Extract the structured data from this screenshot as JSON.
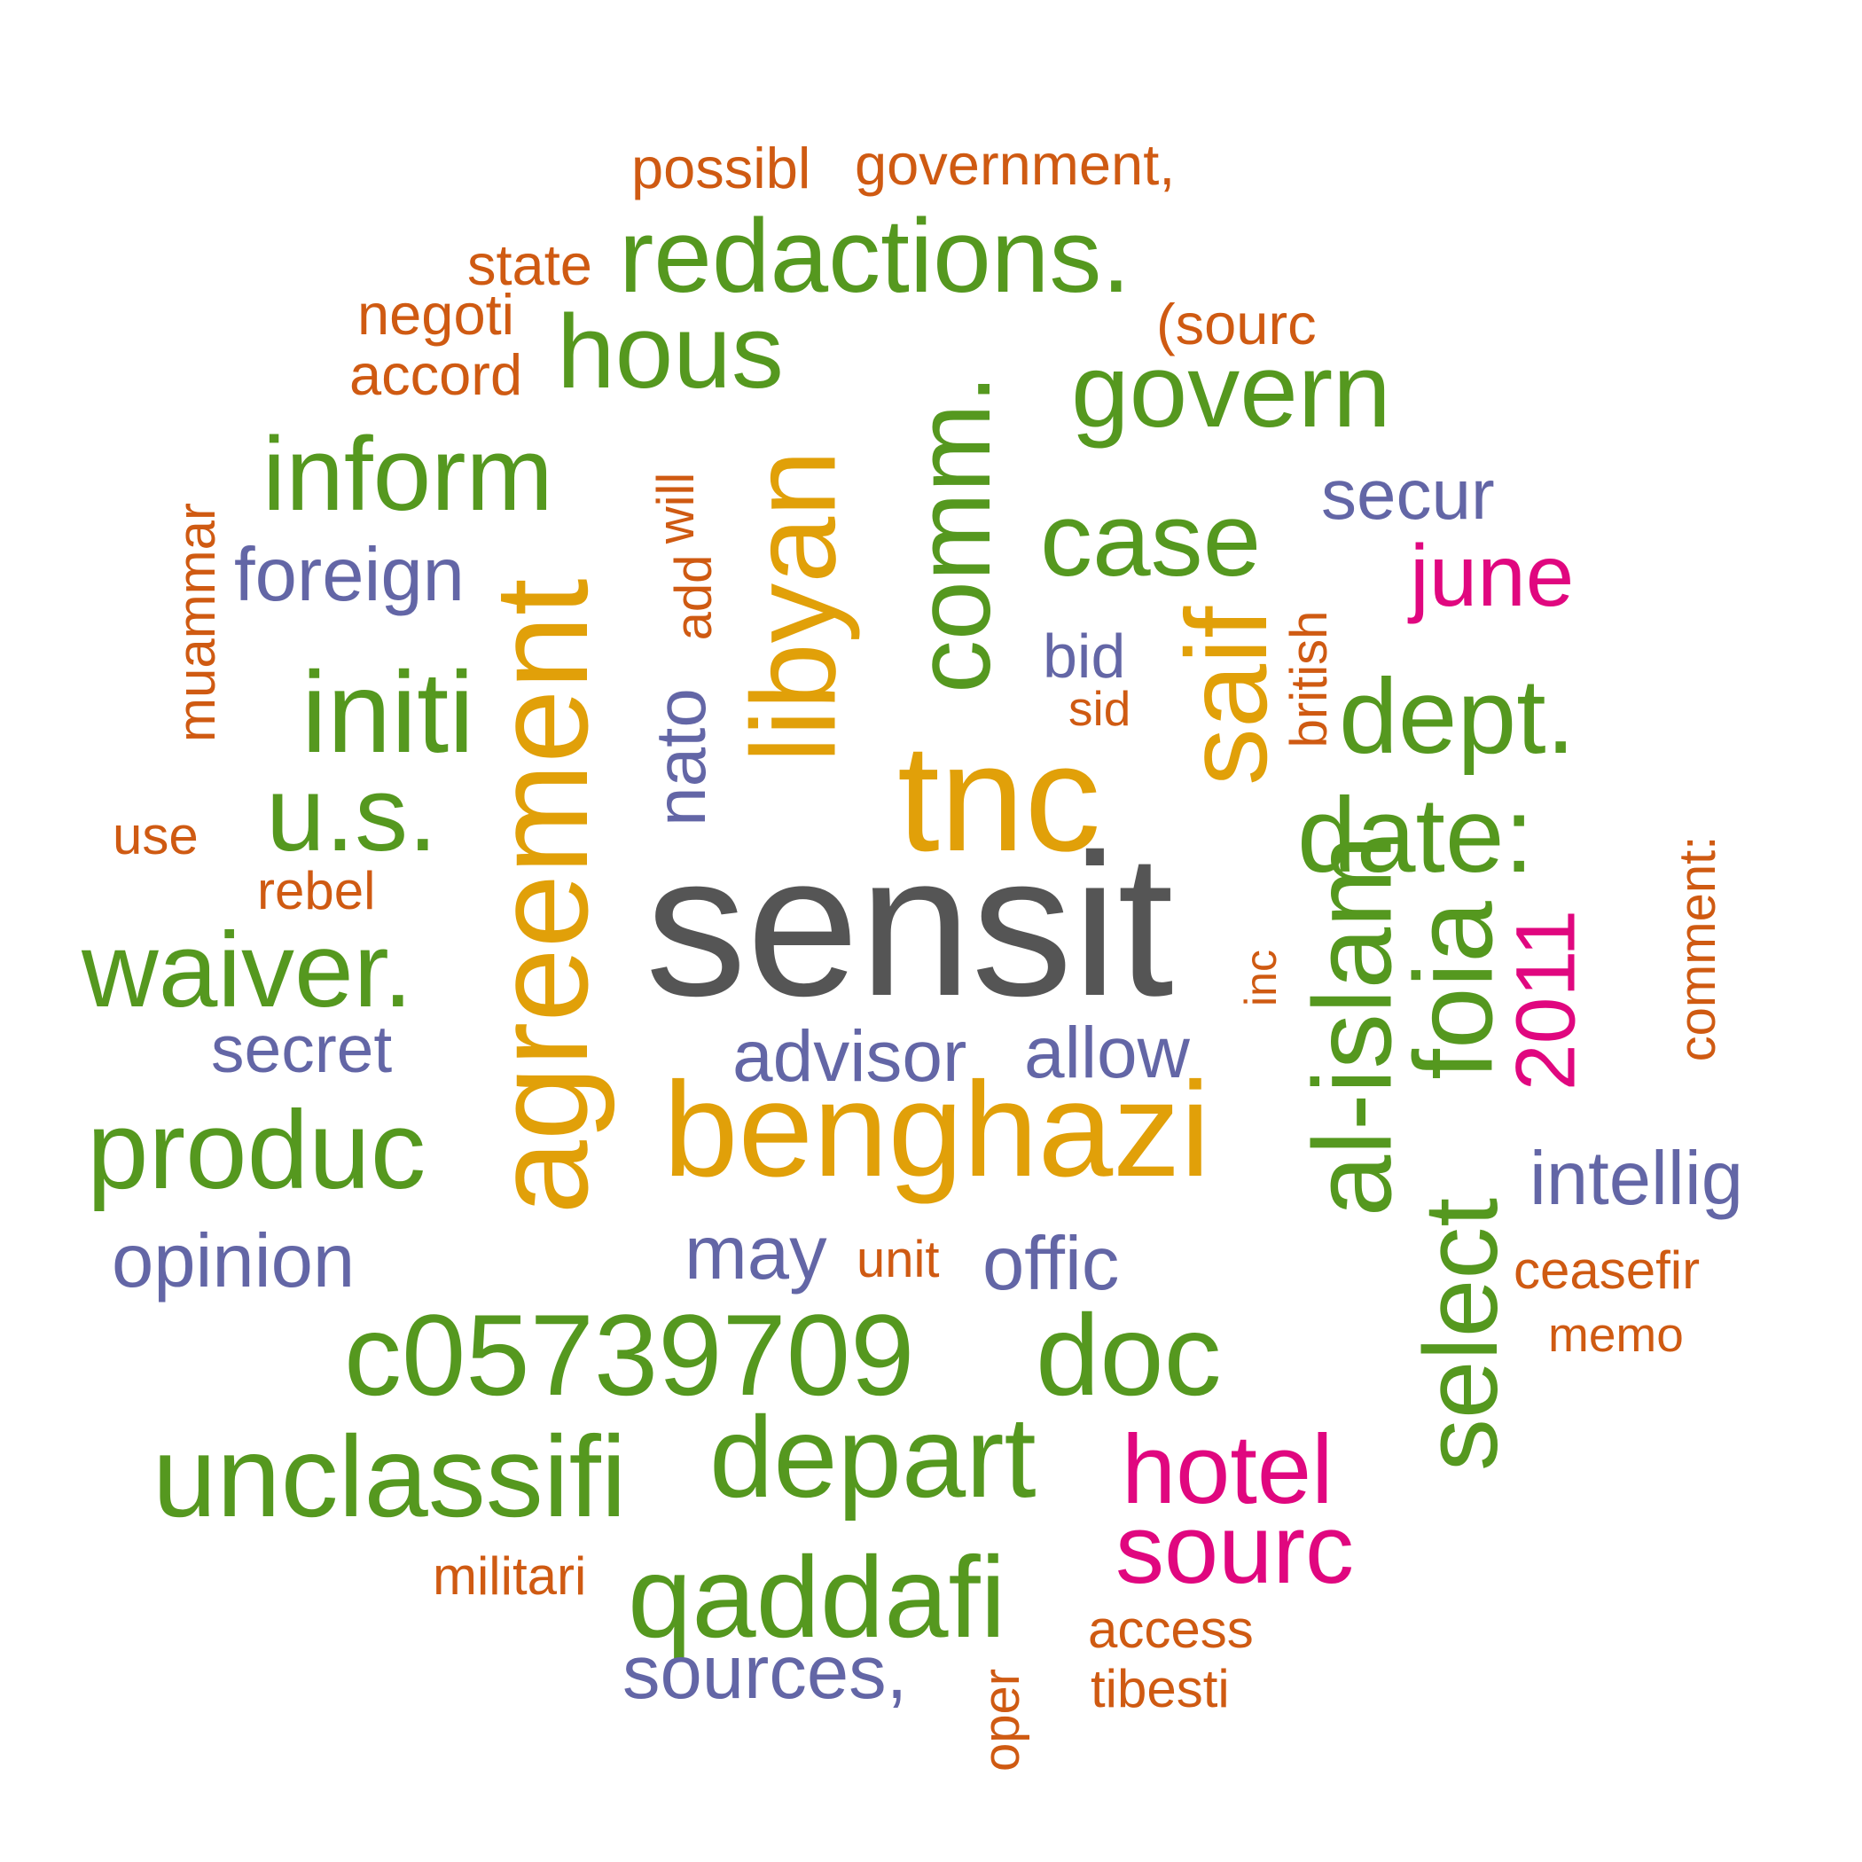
{
  "colors": {
    "dark": "#555555",
    "gold": "#E1A009",
    "green": "#55981F",
    "purple": "#6366A6",
    "pink": "#E0077F",
    "orange": "#CF5A12"
  },
  "words": [
    {
      "text": "sensit",
      "color": "dark"
    },
    {
      "text": "benghazi",
      "color": "gold"
    },
    {
      "text": "agreement",
      "color": "gold"
    },
    {
      "text": "tnc",
      "color": "gold"
    },
    {
      "text": "libyan",
      "color": "gold"
    },
    {
      "text": "saif",
      "color": "gold"
    },
    {
      "text": "redactions.",
      "color": "green"
    },
    {
      "text": "hous",
      "color": "green"
    },
    {
      "text": "comm.",
      "color": "green"
    },
    {
      "text": "govern",
      "color": "green"
    },
    {
      "text": "inform",
      "color": "green"
    },
    {
      "text": "case",
      "color": "green"
    },
    {
      "text": "initi",
      "color": "green"
    },
    {
      "text": "dept.",
      "color": "green"
    },
    {
      "text": "u.s.",
      "color": "green"
    },
    {
      "text": "date:",
      "color": "green"
    },
    {
      "text": "waiver.",
      "color": "green"
    },
    {
      "text": "al-islam",
      "color": "green"
    },
    {
      "text": "foia",
      "color": "green"
    },
    {
      "text": "produc",
      "color": "green"
    },
    {
      "text": "select",
      "color": "green"
    },
    {
      "text": "c05739709",
      "color": "green"
    },
    {
      "text": "doc",
      "color": "green"
    },
    {
      "text": "unclassifi",
      "color": "green"
    },
    {
      "text": "depart",
      "color": "green"
    },
    {
      "text": "qaddafi",
      "color": "green"
    },
    {
      "text": "hotel",
      "color": "pink"
    },
    {
      "text": "sourc",
      "color": "pink"
    },
    {
      "text": "june",
      "color": "pink"
    },
    {
      "text": "2011",
      "color": "pink"
    },
    {
      "text": "foreign",
      "color": "purple"
    },
    {
      "text": "secur",
      "color": "purple"
    },
    {
      "text": "bid",
      "color": "purple"
    },
    {
      "text": "nato",
      "color": "purple"
    },
    {
      "text": "secret",
      "color": "purple"
    },
    {
      "text": "advisor",
      "color": "purple"
    },
    {
      "text": "allow",
      "color": "purple"
    },
    {
      "text": "intellig",
      "color": "purple"
    },
    {
      "text": "opinion",
      "color": "purple"
    },
    {
      "text": "may",
      "color": "purple"
    },
    {
      "text": "offic",
      "color": "purple"
    },
    {
      "text": "sources,",
      "color": "purple"
    },
    {
      "text": "possibl",
      "color": "orange"
    },
    {
      "text": "government,",
      "color": "orange"
    },
    {
      "text": "state",
      "color": "orange"
    },
    {
      "text": "negoti",
      "color": "orange"
    },
    {
      "text": "(sourc",
      "color": "orange"
    },
    {
      "text": "accord",
      "color": "orange"
    },
    {
      "text": "muammar",
      "color": "orange"
    },
    {
      "text": "will",
      "color": "orange"
    },
    {
      "text": "add",
      "color": "orange"
    },
    {
      "text": "british",
      "color": "orange"
    },
    {
      "text": "sid",
      "color": "orange"
    },
    {
      "text": "use",
      "color": "orange"
    },
    {
      "text": "rebel",
      "color": "orange"
    },
    {
      "text": "comment:",
      "color": "orange"
    },
    {
      "text": "inc",
      "color": "orange"
    },
    {
      "text": "ceasefir",
      "color": "orange"
    },
    {
      "text": "unit",
      "color": "orange"
    },
    {
      "text": "memo",
      "color": "orange"
    },
    {
      "text": "militari",
      "color": "orange"
    },
    {
      "text": "access",
      "color": "orange"
    },
    {
      "text": "tibesti",
      "color": "orange"
    },
    {
      "text": "oper",
      "color": "orange"
    }
  ]
}
